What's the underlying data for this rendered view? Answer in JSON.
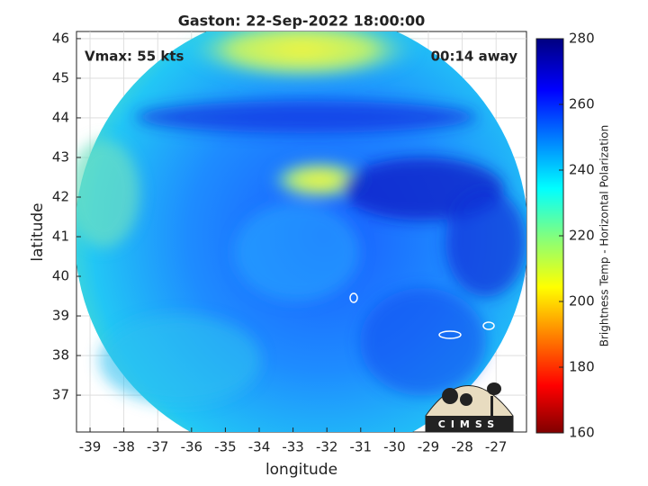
{
  "title": "Gaston: 22-Sep-2022 18:00:00",
  "annotations": {
    "vmax": "Vmax: 55 kts",
    "time_away": "00:14 away"
  },
  "x_axis": {
    "label": "longitude",
    "lim": [
      -39.4,
      -26.1
    ],
    "ticks": [
      -39,
      -38,
      -37,
      -36,
      -35,
      -34,
      -33,
      -32,
      -31,
      -30,
      -29,
      -28,
      -27
    ]
  },
  "y_axis": {
    "label": "latitude",
    "lim": [
      36.07,
      46.18
    ],
    "ticks": [
      37,
      38,
      39,
      40,
      41,
      42,
      43,
      44,
      45,
      46
    ]
  },
  "grid": true,
  "colorbar": {
    "label": "Brightness Temp - Horizontal Polarization",
    "lim": [
      160,
      280
    ],
    "ticks": [
      160,
      180,
      200,
      220,
      240,
      260,
      280
    ]
  },
  "logo": "CIMSS"
}
